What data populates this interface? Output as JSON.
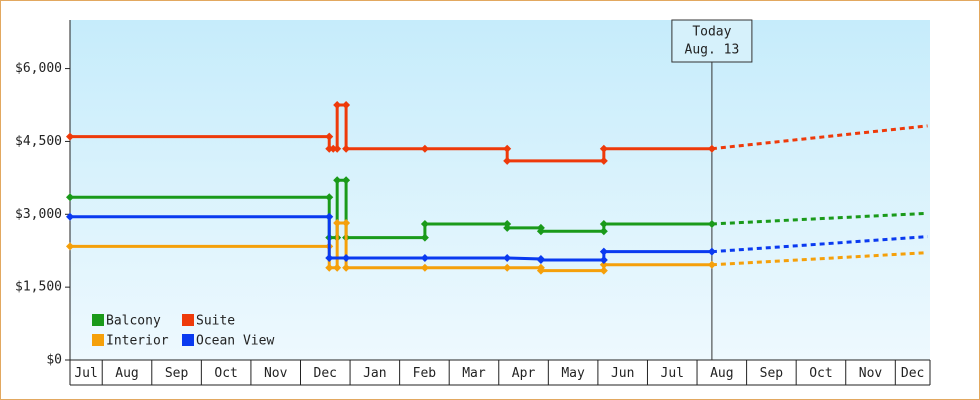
{
  "chart_data": {
    "type": "step-line",
    "xlim": [
      0.35,
      17.7
    ],
    "xticks": [
      {
        "value": 0,
        "label": "Jul"
      },
      {
        "value": 1,
        "label": "Aug"
      },
      {
        "value": 2,
        "label": "Sep"
      },
      {
        "value": 3,
        "label": "Oct"
      },
      {
        "value": 4,
        "label": "Nov"
      },
      {
        "value": 5,
        "label": "Dec"
      },
      {
        "value": 6,
        "label": "Jan"
      },
      {
        "value": 7,
        "label": "Feb"
      },
      {
        "value": 8,
        "label": "Mar"
      },
      {
        "value": 9,
        "label": "Apr"
      },
      {
        "value": 10,
        "label": "May"
      },
      {
        "value": 11,
        "label": "Jun"
      },
      {
        "value": 12,
        "label": "Jul"
      },
      {
        "value": 13,
        "label": "Aug"
      },
      {
        "value": 14,
        "label": "Sep"
      },
      {
        "value": 15,
        "label": "Oct"
      },
      {
        "value": 16,
        "label": "Nov"
      },
      {
        "value": 17,
        "label": "Dec"
      }
    ],
    "ylim": [
      0,
      7000
    ],
    "yticks": [
      {
        "value": 0,
        "label": "$0"
      },
      {
        "value": 1500,
        "label": "$1,500"
      },
      {
        "value": 3000,
        "label": "$3,000"
      },
      {
        "value": 4500,
        "label": "$4,500"
      },
      {
        "value": 6000,
        "label": "$6,000"
      }
    ],
    "today": {
      "x": 13.3,
      "label": [
        "Today",
        "Aug. 13"
      ]
    },
    "legend": "lower-left",
    "series": [
      {
        "name": "Balcony",
        "color": "#1a9a1a",
        "x": [
          0.35,
          5.58,
          5.58,
          5.74,
          5.74,
          5.92,
          5.92,
          7.51,
          7.51,
          9.17,
          9.17,
          9.85,
          9.85,
          11.12,
          11.12,
          13.3
        ],
        "values": [
          3350,
          3350,
          2520,
          2520,
          3700,
          3700,
          2520,
          2520,
          2800,
          2800,
          2720,
          2720,
          2650,
          2650,
          2800,
          2800
        ],
        "forecast_x": [
          13.3,
          17.65
        ],
        "forecast_values": [
          2800,
          3020
        ]
      },
      {
        "name": "Suite",
        "color": "#ee3a0a",
        "x": [
          0.35,
          5.58,
          5.58,
          5.66,
          5.74,
          5.74,
          5.92,
          5.92,
          7.51,
          9.17,
          9.17,
          11.12,
          11.12,
          13.3
        ],
        "values": [
          4600,
          4600,
          4350,
          4350,
          4350,
          5250,
          5250,
          4350,
          4350,
          4350,
          4100,
          4100,
          4350,
          4350
        ],
        "forecast_x": [
          13.3,
          17.65
        ],
        "forecast_values": [
          4350,
          4820
        ]
      },
      {
        "name": "Interior",
        "color": "#f5a00a",
        "x": [
          0.35,
          5.58,
          5.58,
          5.74,
          5.74,
          5.92,
          5.92,
          7.51,
          9.17,
          9.85,
          9.85,
          11.12,
          11.12,
          13.3
        ],
        "values": [
          2340,
          2340,
          1900,
          1900,
          2820,
          2820,
          1900,
          1900,
          1900,
          1900,
          1840,
          1840,
          1960,
          1960
        ],
        "forecast_x": [
          13.3,
          17.65
        ],
        "forecast_values": [
          1960,
          2210
        ]
      },
      {
        "name": "Ocean View",
        "color": "#0a3af0",
        "x": [
          0.35,
          5.58,
          5.58,
          5.92,
          7.51,
          9.17,
          9.85,
          9.85,
          11.12,
          11.12,
          13.3
        ],
        "values": [
          2950,
          2950,
          2100,
          2100,
          2100,
          2100,
          2080,
          2060,
          2060,
          2230,
          2230
        ],
        "forecast_x": [
          13.3,
          17.65
        ],
        "forecast_values": [
          2230,
          2540
        ]
      }
    ]
  }
}
